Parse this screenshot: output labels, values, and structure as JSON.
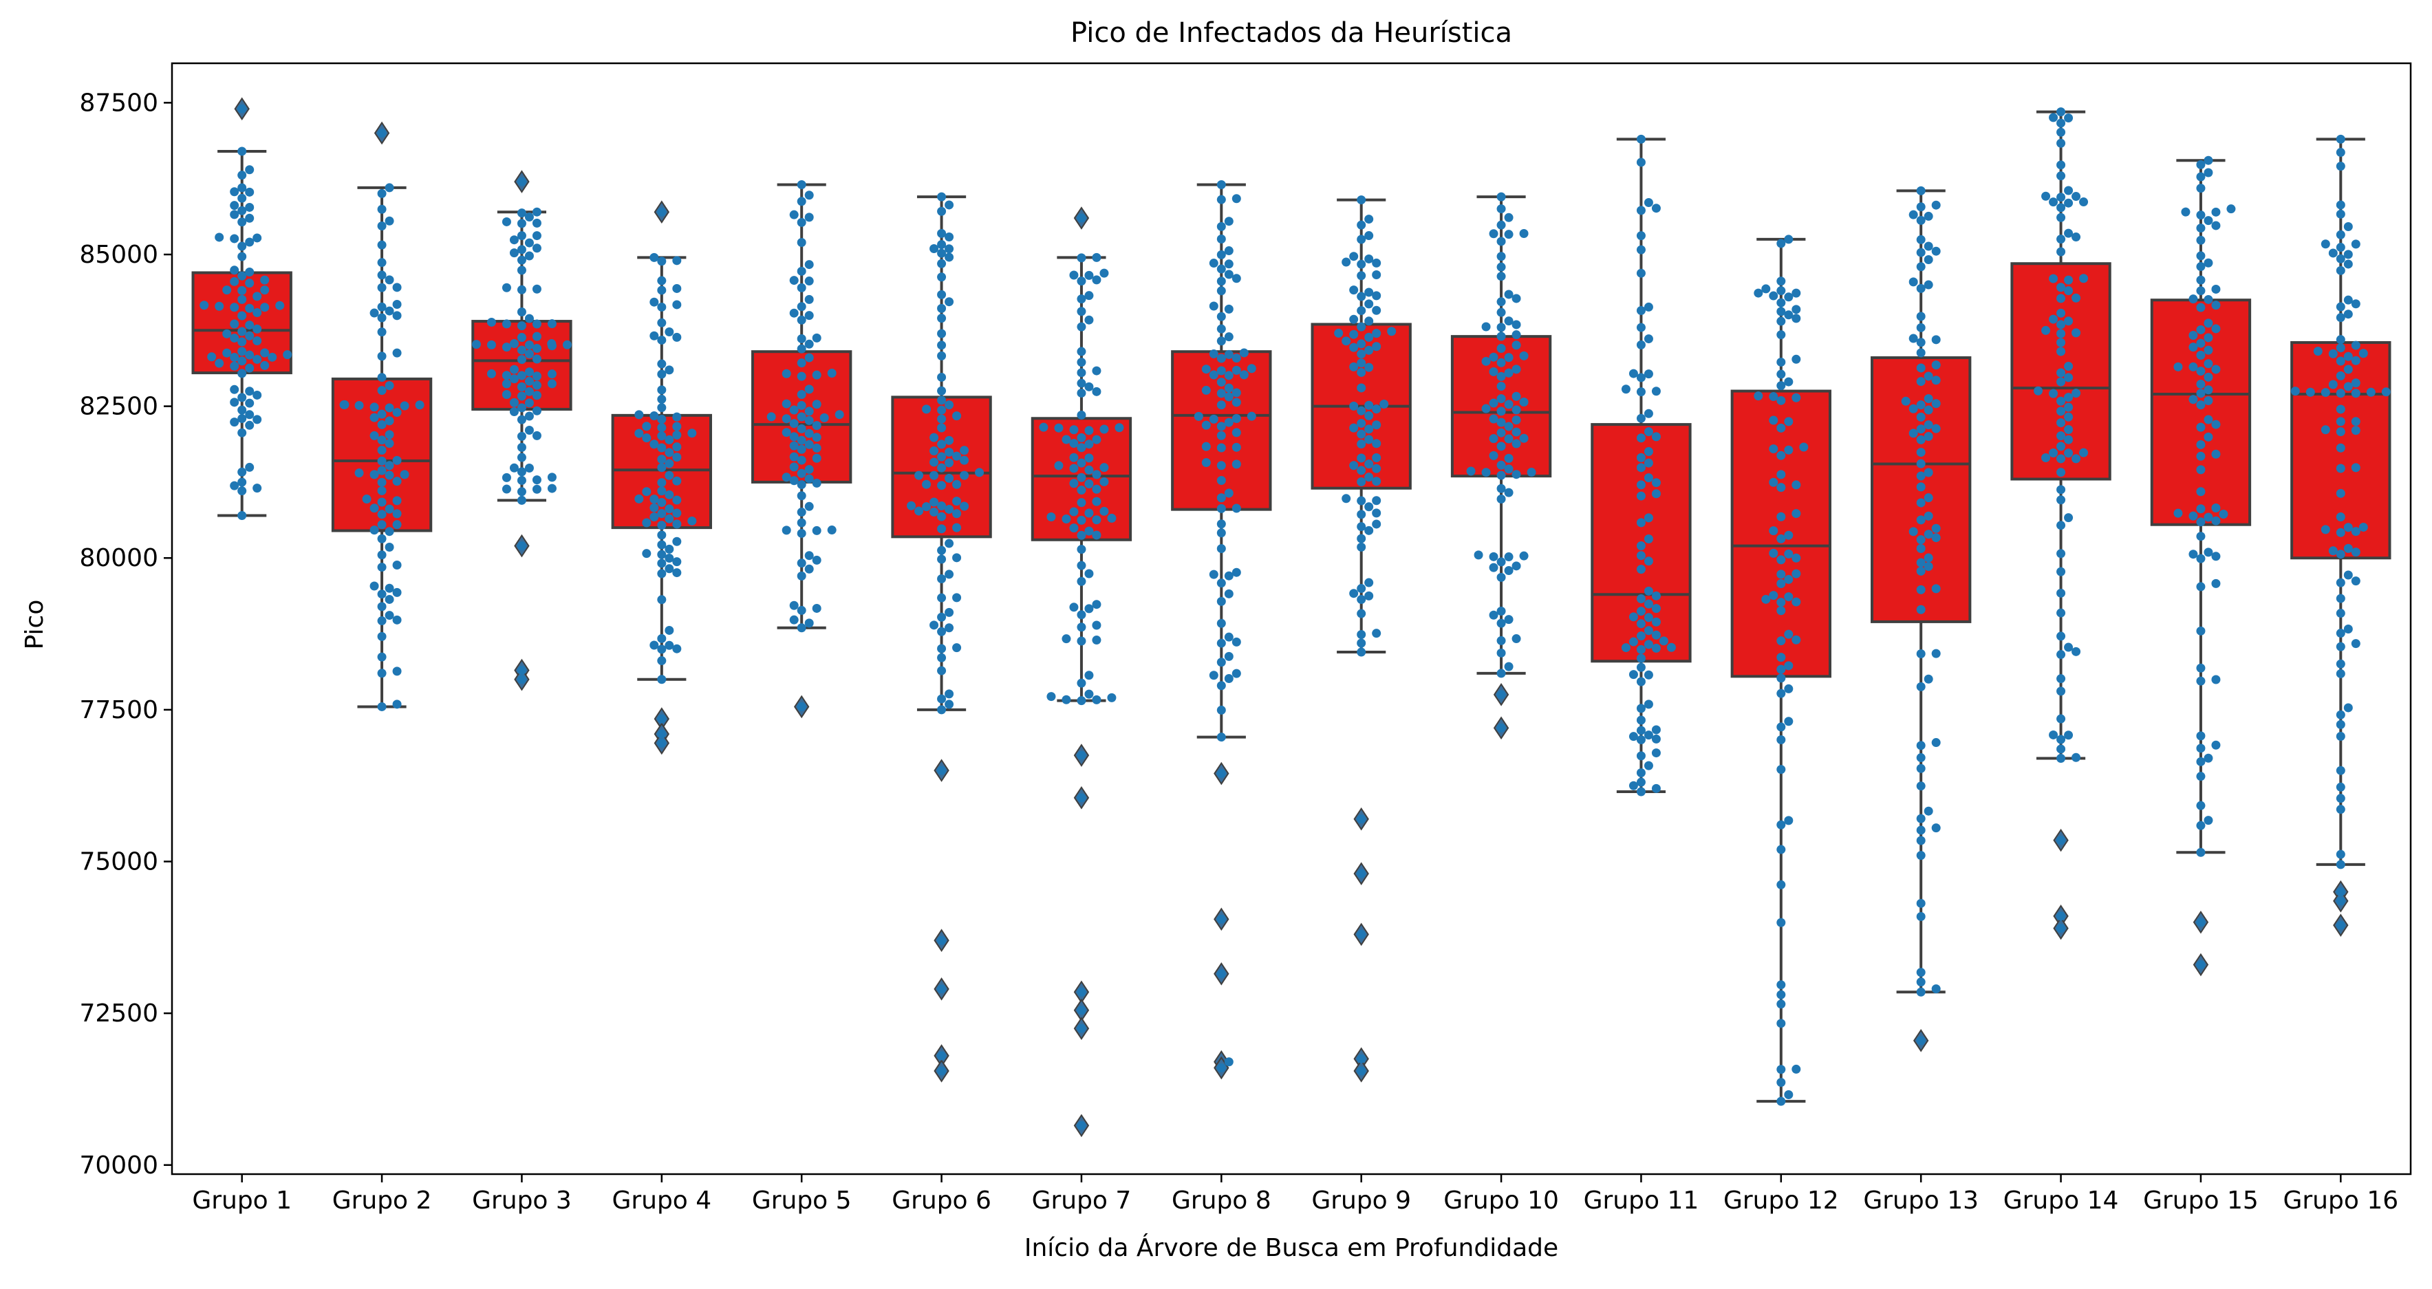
{
  "chart_data": {
    "type": "box",
    "title": "Pico de Infectados da Heurística",
    "xlabel": "Início da Árvore de Busca em Profundidade",
    "ylabel": "Pico",
    "ylim": [
      69850,
      88150
    ],
    "y_ticks": [
      70000,
      72500,
      75000,
      77500,
      80000,
      82500,
      85000,
      87500
    ],
    "y_tick_labels": [
      "70000",
      "72500",
      "75000",
      "77500",
      "80000",
      "82500",
      "85000",
      "87500"
    ],
    "categories": [
      "Grupo 1",
      "Grupo 2",
      "Grupo 3",
      "Grupo 4",
      "Grupo 5",
      "Grupo 6",
      "Grupo 7",
      "Grupo 8",
      "Grupo 9",
      "Grupo 10",
      "Grupo 11",
      "Grupo 12",
      "Grupo 13",
      "Grupo 14",
      "Grupo 15",
      "Grupo 16"
    ],
    "grid": false,
    "legend": "none",
    "colors": {
      "box_fill": "#e41a1a",
      "box_edge": "#3f3f3f",
      "points": "#1f77b4",
      "outlier_fill": "#3a6d9a"
    },
    "boxes": [
      {
        "category": "Grupo 1",
        "whisker_low": 80700,
        "q1": 83050,
        "median": 83750,
        "q3": 84700,
        "whisker_high": 86700,
        "outliers": [
          87400
        ]
      },
      {
        "category": "Grupo 2",
        "whisker_low": 77550,
        "q1": 80450,
        "median": 81600,
        "q3": 82950,
        "whisker_high": 86100,
        "outliers": [
          87000
        ]
      },
      {
        "category": "Grupo 3",
        "whisker_low": 80950,
        "q1": 82450,
        "median": 83250,
        "q3": 83900,
        "whisker_high": 85700,
        "outliers": [
          86200,
          80200,
          78150,
          78000
        ]
      },
      {
        "category": "Grupo 4",
        "whisker_low": 78000,
        "q1": 80500,
        "median": 81450,
        "q3": 82350,
        "whisker_high": 84950,
        "outliers": [
          85700,
          77350,
          77100,
          76950
        ]
      },
      {
        "category": "Grupo 5",
        "whisker_low": 78850,
        "q1": 81250,
        "median": 82200,
        "q3": 83400,
        "whisker_high": 86150,
        "outliers": [
          77550
        ]
      },
      {
        "category": "Grupo 6",
        "whisker_low": 77500,
        "q1": 80350,
        "median": 81400,
        "q3": 82650,
        "whisker_high": 85950,
        "outliers": [
          76500,
          73700,
          72900,
          71800,
          71550
        ]
      },
      {
        "category": "Grupo 7",
        "whisker_low": 77650,
        "q1": 80300,
        "median": 81350,
        "q3": 82300,
        "whisker_high": 84950,
        "outliers": [
          85600,
          76750,
          76050,
          72850,
          72550,
          72250,
          70650
        ]
      },
      {
        "category": "Grupo 8",
        "whisker_low": 77050,
        "q1": 80800,
        "median": 82350,
        "q3": 83400,
        "whisker_high": 86150,
        "outliers": [
          76450,
          74050,
          73150,
          71700,
          71600
        ]
      },
      {
        "category": "Grupo 9",
        "whisker_low": 78450,
        "q1": 81150,
        "median": 82500,
        "q3": 83850,
        "whisker_high": 85900,
        "outliers": [
          75700,
          74800,
          73800,
          71750,
          71550
        ]
      },
      {
        "category": "Grupo 10",
        "whisker_low": 78100,
        "q1": 81350,
        "median": 82400,
        "q3": 83650,
        "whisker_high": 85950,
        "outliers": [
          77750,
          77200
        ]
      },
      {
        "category": "Grupo 11",
        "whisker_low": 76150,
        "q1": 78300,
        "median": 79400,
        "q3": 82200,
        "whisker_high": 86900,
        "outliers": []
      },
      {
        "category": "Grupo 12",
        "whisker_low": 71050,
        "q1": 78050,
        "median": 80200,
        "q3": 82750,
        "whisker_high": 85250,
        "outliers": []
      },
      {
        "category": "Grupo 13",
        "whisker_low": 72850,
        "q1": 78950,
        "median": 81550,
        "q3": 83300,
        "whisker_high": 86050,
        "outliers": [
          72050
        ]
      },
      {
        "category": "Grupo 14",
        "whisker_low": 76700,
        "q1": 81300,
        "median": 82800,
        "q3": 84850,
        "whisker_high": 87350,
        "outliers": [
          75350,
          74100,
          73900
        ]
      },
      {
        "category": "Grupo 15",
        "whisker_low": 75150,
        "q1": 80550,
        "median": 82700,
        "q3": 84250,
        "whisker_high": 86550,
        "outliers": [
          74000,
          73300
        ]
      },
      {
        "category": "Grupo 16",
        "whisker_low": 74950,
        "q1": 80000,
        "median": 82700,
        "q3": 83550,
        "whisker_high": 86900,
        "outliers": [
          74500,
          74350,
          73950
        ]
      }
    ]
  }
}
